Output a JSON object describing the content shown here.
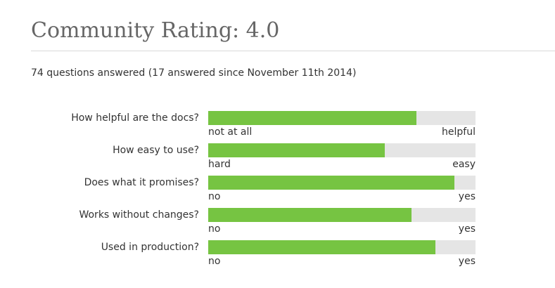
{
  "header": {
    "title": "Community Rating: 4.0"
  },
  "summary": {
    "text": "74 questions answered (17 answered since November 11th 2014)"
  },
  "colors": {
    "bar_fill": "#76c442",
    "bar_track": "#e5e5e5"
  },
  "ratings": [
    {
      "question": "How helpful are the docs?",
      "low_label": "not at all",
      "high_label": "helpful",
      "fraction": 0.78
    },
    {
      "question": "How easy to use?",
      "low_label": "hard",
      "high_label": "easy",
      "fraction": 0.66
    },
    {
      "question": "Does what it promises?",
      "low_label": "no",
      "high_label": "yes",
      "fraction": 0.92
    },
    {
      "question": "Works without changes?",
      "low_label": "no",
      "high_label": "yes",
      "fraction": 0.76
    },
    {
      "question": "Used in production?",
      "low_label": "no",
      "high_label": "yes",
      "fraction": 0.85
    }
  ]
}
